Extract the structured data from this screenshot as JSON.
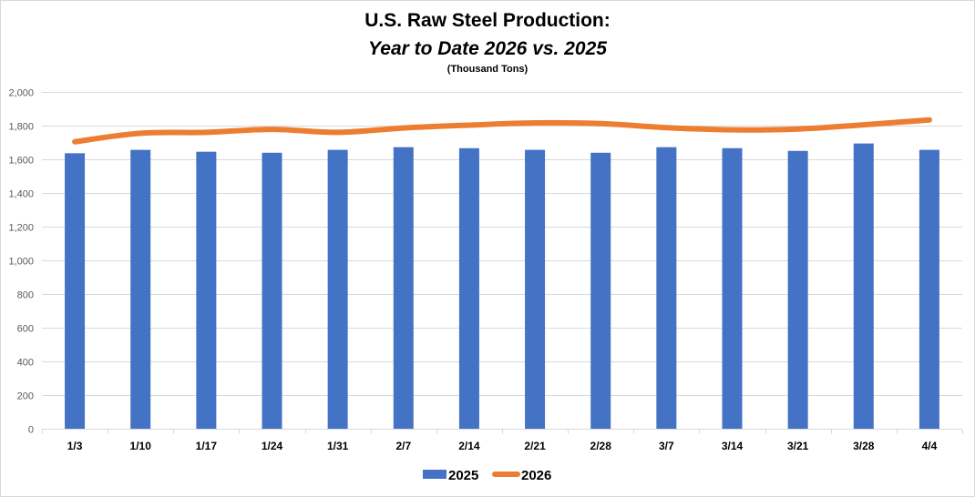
{
  "chart_data": {
    "type": "bar+line",
    "title": "U.S. Raw Steel Production:",
    "subtitle": "Year to Date 2026 vs. 2025",
    "units_note": "(Thousand Tons)",
    "xlabel": "",
    "ylabel": "",
    "ylim": [
      0,
      2000
    ],
    "yticks": [
      0,
      200,
      400,
      600,
      800,
      1000,
      1200,
      1400,
      1600,
      1800,
      2000
    ],
    "ytick_labels": [
      "0",
      "200",
      "400",
      "600",
      "800",
      "1,000",
      "1,200",
      "1,400",
      "1,600",
      "1,800",
      "2,000"
    ],
    "grid": true,
    "legend_position": "bottom",
    "categories": [
      "1/3",
      "1/10",
      "1/17",
      "1/24",
      "1/31",
      "2/7",
      "2/14",
      "2/21",
      "2/28",
      "3/7",
      "3/14",
      "3/21",
      "3/28",
      "4/4"
    ],
    "series": [
      {
        "name": "2025",
        "type": "bar",
        "color": "#4472c4",
        "values": [
          1636,
          1656,
          1645,
          1639,
          1656,
          1672,
          1666,
          1656,
          1639,
          1672,
          1666,
          1650,
          1694,
          1656
        ]
      },
      {
        "name": "2026",
        "type": "line",
        "color": "#ed7d31",
        "values": [
          1704,
          1755,
          1760,
          1778,
          1760,
          1786,
          1803,
          1816,
          1812,
          1788,
          1775,
          1780,
          1805,
          1834
        ]
      }
    ]
  }
}
